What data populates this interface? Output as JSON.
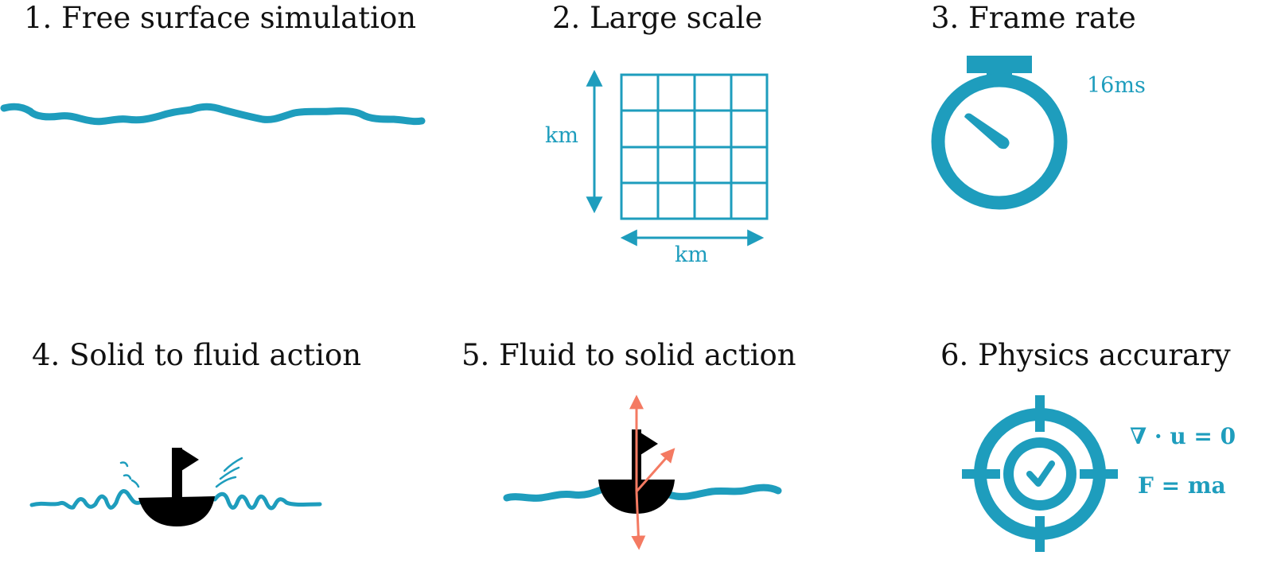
{
  "colors": {
    "accent": "#1e9dbd",
    "force": "#f47a62",
    "boat": "#000000",
    "text": "#111111"
  },
  "panels": [
    {
      "number": "1.",
      "title": "Free surface simulation",
      "icon": "wavy-line-icon"
    },
    {
      "number": "2.",
      "title": "Large scale",
      "icon": "grid-icon",
      "vertical_label": "km",
      "horizontal_label": "km"
    },
    {
      "number": "3.",
      "title": "Frame rate",
      "icon": "stopwatch-icon",
      "time_label": "16ms"
    },
    {
      "number": "4.",
      "title": "Solid to fluid action",
      "icon": "boat-splash-icon"
    },
    {
      "number": "5.",
      "title": "Fluid to solid action",
      "icon": "boat-forces-icon"
    },
    {
      "number": "6.",
      "title": "Physics accurary",
      "icon": "target-check-icon",
      "equations": [
        "∇ · u = 0",
        "F = ma"
      ]
    }
  ]
}
